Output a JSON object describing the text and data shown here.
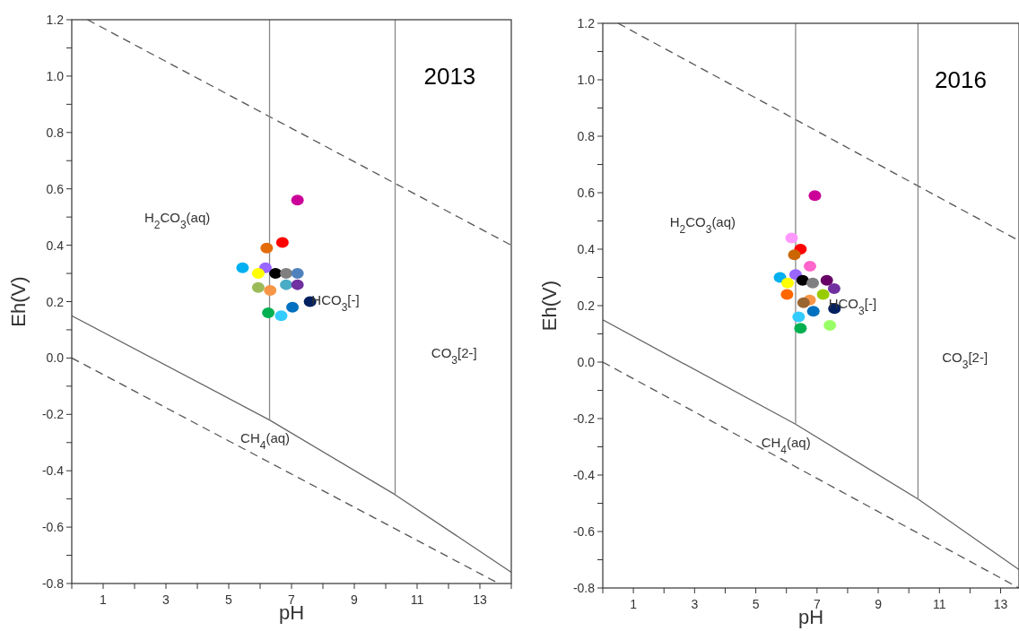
{
  "chart_data": [
    {
      "type": "scatter",
      "title": "2013",
      "xlabel": "pH",
      "ylabel": "Eh(V)",
      "xlim": [
        0,
        14
      ],
      "ylim": [
        -0.8,
        1.2
      ],
      "grid": false,
      "xticks": [
        {
          "value": 0,
          "label": null
        },
        1,
        {
          "value": 2,
          "label": null
        },
        3,
        {
          "value": 4,
          "label": null
        },
        5,
        {
          "value": 6,
          "label": null
        },
        7,
        {
          "value": 8,
          "label": null
        },
        9,
        {
          "value": 10,
          "label": null
        },
        11,
        {
          "value": 12,
          "label": null
        },
        13,
        {
          "value": 14,
          "label": null
        }
      ],
      "yticks": [
        {
          "value": -0.8,
          "label": "-0.8"
        },
        {
          "value": -0.7,
          "label": null
        },
        {
          "value": -0.6,
          "label": "-0.6"
        },
        {
          "value": -0.5,
          "label": null
        },
        {
          "value": -0.4,
          "label": "-0.4"
        },
        {
          "value": -0.3,
          "label": null
        },
        {
          "value": -0.2,
          "label": "-0.2"
        },
        {
          "value": -0.1,
          "label": null
        },
        {
          "value": 0,
          "label": "0.0"
        },
        {
          "value": 0.1,
          "label": null
        },
        {
          "value": 0.2,
          "label": "0.2"
        },
        {
          "value": 0.3,
          "label": null
        },
        {
          "value": 0.4,
          "label": "0.4"
        },
        {
          "value": 0.5,
          "label": null
        },
        {
          "value": 0.6,
          "label": "0.6"
        },
        {
          "value": 0.7,
          "label": null
        },
        {
          "value": 0.8,
          "label": "0.8"
        },
        {
          "value": 0.9,
          "label": null
        },
        {
          "value": 1.0,
          "label": "1.0"
        },
        {
          "value": 1.1,
          "label": null
        },
        {
          "value": 1.2,
          "label": "1.2"
        }
      ],
      "annotations": [
        "H$_{2}$CO$_{3}$(aq)",
        "HCO$_{3}$[-]",
        "CO$_{3}$[2-]",
        "CH$_{4}$(aq)"
      ],
      "series": [
        {
          "type": "line",
          "line_style": "dashed",
          "color": "#555555",
          "x": [
            0.5,
            14
          ],
          "values": [
            1.2,
            0.4
          ]
        },
        {
          "type": "line",
          "line_style": "dashed",
          "color": "#555555",
          "x": [
            0,
            13.6
          ],
          "values": [
            0,
            -0.8
          ]
        },
        {
          "type": "line",
          "line_style": "solid",
          "color": "#666666",
          "x": [
            0,
            6.3,
            10.3,
            14
          ],
          "values": [
            0.15,
            -0.22,
            -0.485,
            -0.76
          ]
        },
        {
          "type": "line",
          "line_style": "solid",
          "color": "#888888",
          "x": [
            6.3,
            6.3
          ],
          "values": [
            1.2,
            -0.22
          ]
        },
        {
          "type": "line",
          "line_style": "solid",
          "color": "#888888",
          "x": [
            10.3,
            10.3
          ],
          "values": [
            1.2,
            -0.485
          ]
        },
        {
          "marker": "circle",
          "x": [
            7.19,
            6.71,
            6.21,
            5.44,
            6.17,
            5.94,
            6.49,
            6.83,
            7.19,
            6.83,
            7.19,
            5.94,
            6.32,
            7.59,
            7.03,
            6.26,
            6.67
          ],
          "values": [
            0.56,
            0.41,
            0.39,
            0.32,
            0.32,
            0.3,
            0.3,
            0.3,
            0.3,
            0.26,
            0.26,
            0.25,
            0.24,
            0.2,
            0.18,
            0.16,
            0.15
          ],
          "colors": [
            "#cc0099",
            "#ff0000",
            "#e36c09",
            "#00b0f0",
            "#9966ff",
            "#ffff00",
            "#000000",
            "#808080",
            "#4f81bd",
            "#4bacc6",
            "#7030a0",
            "#9bbb59",
            "#f79646",
            "#002060",
            "#0070c0",
            "#00b050",
            "#33ccff"
          ]
        }
      ]
    },
    {
      "type": "scatter",
      "title": "2016",
      "xlabel": "pH",
      "ylabel": "Eh(V)",
      "xlim": [
        0,
        13.6
      ],
      "ylim": [
        -0.8,
        1.2
      ],
      "grid": false,
      "xticks": [
        {
          "value": 0,
          "label": null
        },
        1,
        {
          "value": 2,
          "label": null
        },
        3,
        {
          "value": 4,
          "label": null
        },
        5,
        {
          "value": 6,
          "label": null
        },
        7,
        {
          "value": 8,
          "label": null
        },
        9,
        {
          "value": 10,
          "label": null
        },
        11,
        {
          "value": 12,
          "label": null
        },
        13
      ],
      "yticks": [
        {
          "value": -0.8,
          "label": "-0.8"
        },
        {
          "value": -0.7,
          "label": null
        },
        {
          "value": -0.6,
          "label": "-0.6"
        },
        {
          "value": -0.5,
          "label": null
        },
        {
          "value": -0.4,
          "label": "-0.4"
        },
        {
          "value": -0.3,
          "label": null
        },
        {
          "value": -0.2,
          "label": "-0.2"
        },
        {
          "value": -0.1,
          "label": null
        },
        {
          "value": 0,
          "label": "0.0"
        },
        {
          "value": 0.1,
          "label": null
        },
        {
          "value": 0.2,
          "label": "0.2"
        },
        {
          "value": 0.3,
          "label": null
        },
        {
          "value": 0.4,
          "label": "0.4"
        },
        {
          "value": 0.5,
          "label": null
        },
        {
          "value": 0.6,
          "label": "0.6"
        },
        {
          "value": 0.7,
          "label": null
        },
        {
          "value": 0.8,
          "label": "0.8"
        },
        {
          "value": 0.9,
          "label": null
        },
        {
          "value": 1.0,
          "label": "1.0"
        },
        {
          "value": 1.1,
          "label": null
        },
        {
          "value": 1.2,
          "label": "1.2"
        }
      ],
      "annotations": [
        "H$_{2}$CO$_{3}$(aq)",
        "HCO$_{3}$[-]",
        "CO$_{3}$[2-]",
        "CH$_{4}$(aq)"
      ],
      "series": [
        {
          "type": "line",
          "line_style": "dashed",
          "color": "#555555",
          "x": [
            0.5,
            13.6
          ],
          "values": [
            1.2,
            0.43
          ]
        },
        {
          "type": "line",
          "line_style": "dashed",
          "color": "#555555",
          "x": [
            0,
            13.6
          ],
          "values": [
            0,
            -0.8
          ]
        },
        {
          "type": "line",
          "line_style": "solid",
          "color": "#666666",
          "x": [
            0,
            6.3,
            10.3,
            13.6
          ],
          "values": [
            0.15,
            -0.22,
            -0.485,
            -0.735
          ]
        },
        {
          "type": "line",
          "line_style": "solid",
          "color": "#888888",
          "x": [
            6.3,
            6.3
          ],
          "values": [
            1.2,
            -0.22
          ]
        },
        {
          "type": "line",
          "line_style": "solid",
          "color": "#888888",
          "x": [
            10.3,
            10.3
          ],
          "values": [
            1.2,
            -0.485
          ]
        },
        {
          "marker": "circle",
          "x": [
            6.93,
            6.17,
            6.46,
            6.26,
            6.77,
            5.79,
            6.3,
            6.04,
            6.53,
            6.86,
            7.32,
            7.56,
            7.2,
            6.02,
            6.76,
            6.56,
            7.57,
            6.88,
            6.4,
            6.46,
            7.42
          ],
          "values": [
            0.59,
            0.44,
            0.4,
            0.38,
            0.34,
            0.3,
            0.31,
            0.28,
            0.29,
            0.28,
            0.29,
            0.26,
            0.24,
            0.24,
            0.22,
            0.21,
            0.19,
            0.18,
            0.16,
            0.12,
            0.13
          ],
          "colors": [
            "#cc0099",
            "#ff99ff",
            "#ff0000",
            "#cc6600",
            "#ff66cc",
            "#00b0f0",
            "#9966ff",
            "#ffff00",
            "#000000",
            "#808080",
            "#660066",
            "#7030a0",
            "#99cc00",
            "#ff6600",
            "#f79646",
            "#996633",
            "#002060",
            "#0070c0",
            "#33ccff",
            "#00b050",
            "#99ff66"
          ]
        }
      ]
    }
  ]
}
